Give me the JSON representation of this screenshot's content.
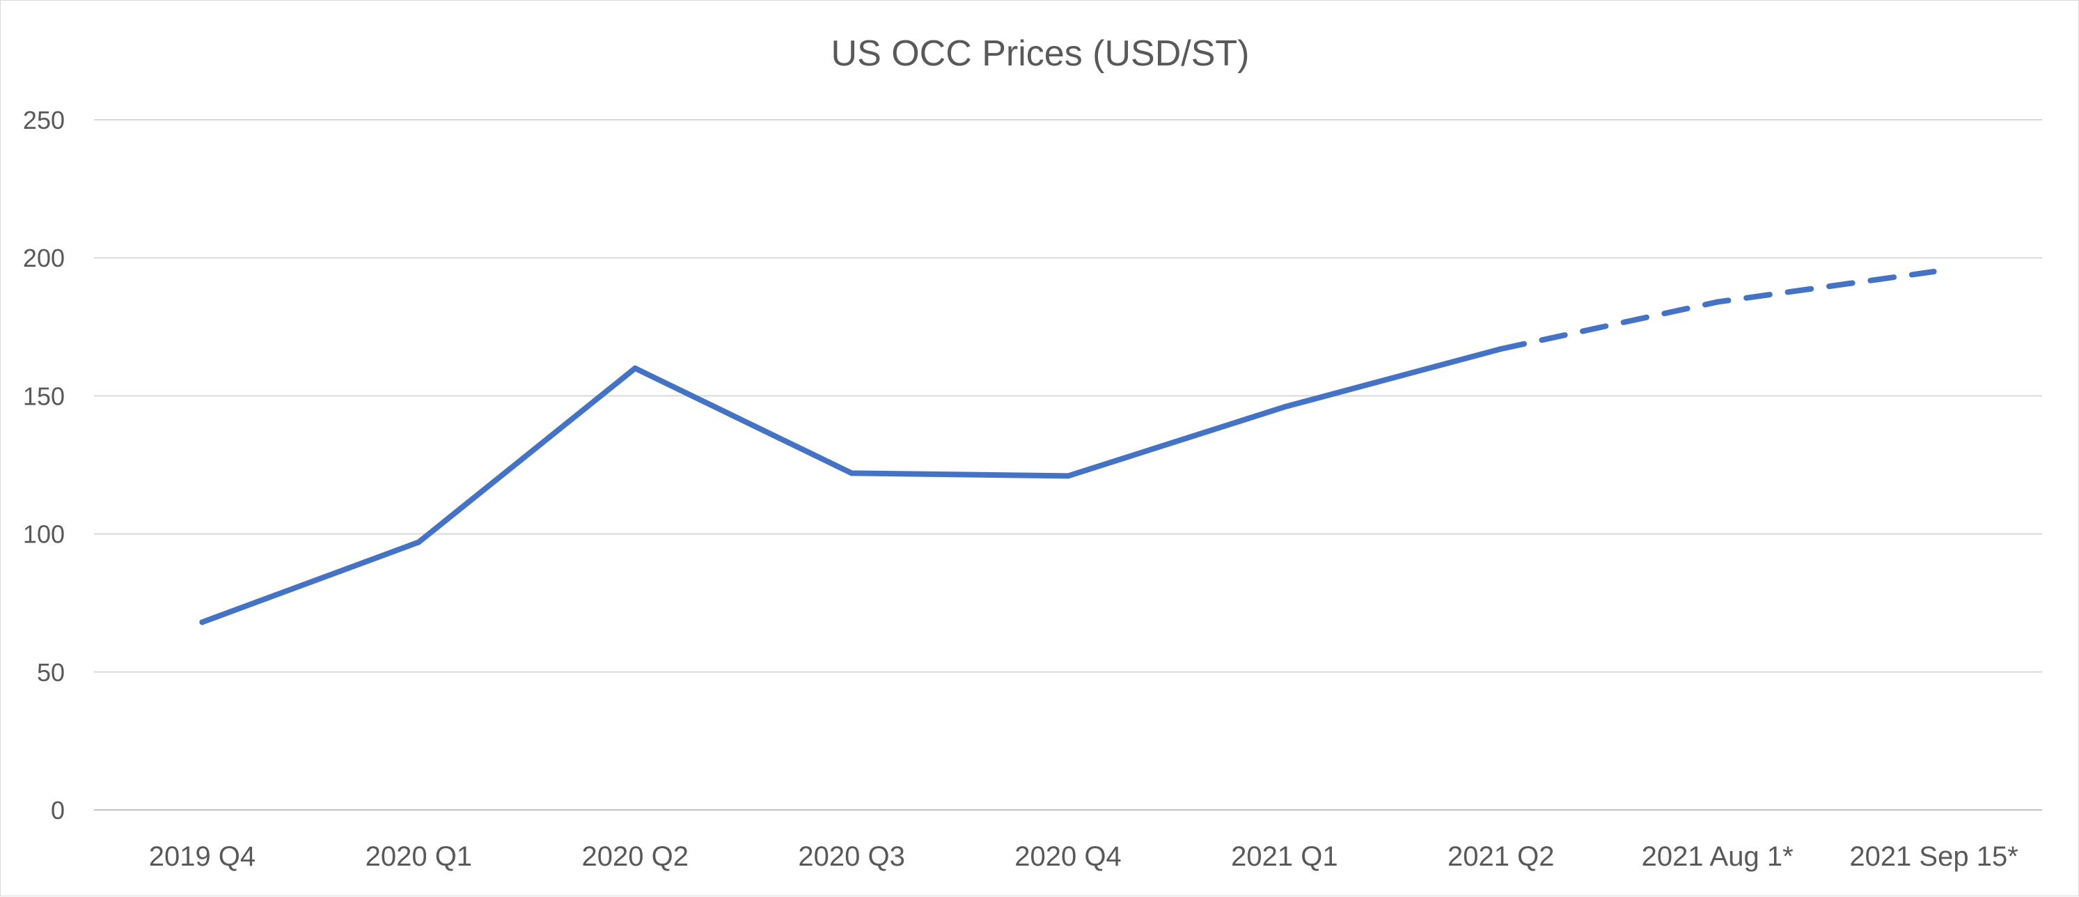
{
  "chart_data": {
    "type": "line",
    "title": "US OCC Prices (USD/ST)",
    "categories": [
      "2019 Q4",
      "2020 Q1",
      "2020 Q2",
      "2020 Q3",
      "2020 Q4",
      "2021 Q1",
      "2021 Q2",
      "2021 Aug 1*",
      "2021 Sep 15*"
    ],
    "series": [
      {
        "values": [
          68,
          97,
          160,
          122,
          121,
          146,
          167,
          184,
          195
        ],
        "style": "solid through 2021 Q2, dashed for projected points",
        "color": "#4472c4"
      }
    ],
    "solid_until_index": 6,
    "ylim": [
      0,
      250
    ],
    "yticks": [
      0,
      50,
      100,
      150,
      200,
      250
    ],
    "grid": true,
    "legend": "none"
  }
}
